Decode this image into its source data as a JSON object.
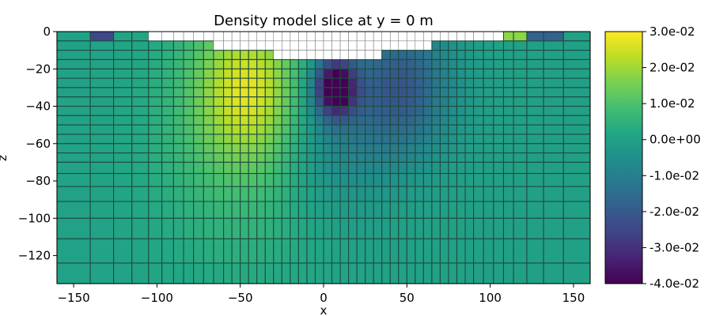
{
  "chart_data": {
    "type": "heatmap",
    "title": "Density model slice at y = 0 m",
    "xlabel": "x",
    "ylabel": "z",
    "xlim": [
      -160,
      160
    ],
    "ylim": [
      -135,
      0
    ],
    "x_ticks": [
      -150,
      -100,
      -50,
      0,
      50,
      100,
      150
    ],
    "x_tick_labels": [
      "−150",
      "−100",
      "−50",
      "0",
      "50",
      "100",
      "150"
    ],
    "y_ticks": [
      0,
      -20,
      -40,
      -60,
      -80,
      -100,
      -120
    ],
    "y_tick_labels": [
      "0",
      "−20",
      "−40",
      "−60",
      "−80",
      "−100",
      "−120"
    ],
    "colormap": "viridis",
    "color_limits": [
      -0.04,
      0.03
    ],
    "colorbar_ticks": [
      0.03,
      0.02,
      0.01,
      0.0,
      -0.01,
      -0.02,
      -0.03,
      -0.04
    ],
    "colorbar_tick_labels": [
      "3.0e-02",
      "2.0e-02",
      "1.0e-02",
      "0.0e+00",
      "-1.0e-02",
      "-2.0e-02",
      "-3.0e-02",
      "-4.0e-02"
    ],
    "anomalies": [
      {
        "sign": "positive",
        "center_x": -45,
        "center_z": -30,
        "peak_value": 0.022
      },
      {
        "sign": "negative",
        "center_x": 7,
        "center_z": -30,
        "peak_value": -0.04
      },
      {
        "sign": "negative",
        "center_x": 48,
        "center_z": -30,
        "peak_value": -0.02
      }
    ],
    "background_value": 0.0,
    "x_edges": [
      -160,
      -140,
      -126,
      -115,
      -105,
      -97,
      -90,
      -84,
      -78,
      -72,
      -66,
      -60,
      -55,
      -50,
      -45,
      -40,
      -35,
      -30,
      -25,
      -20,
      -15,
      -10,
      -5,
      0,
      5,
      10,
      15,
      20,
      25,
      30,
      35,
      40,
      45,
      50,
      55,
      60,
      65,
      70,
      75,
      80,
      85,
      90,
      96,
      102,
      108,
      114,
      122,
      132,
      144,
      160
    ],
    "z_edges": [
      0,
      -5,
      -10,
      -15,
      -20,
      -25,
      -30,
      -35,
      -40,
      -45,
      -50,
      -55,
      -60,
      -65,
      -70,
      -76,
      -83,
      -91,
      -100,
      -111,
      -124,
      -135
    ]
  },
  "colors": {
    "cell_edge": "#1f4d40",
    "air_edge": "#808080",
    "air_fill": "#ffffff"
  }
}
